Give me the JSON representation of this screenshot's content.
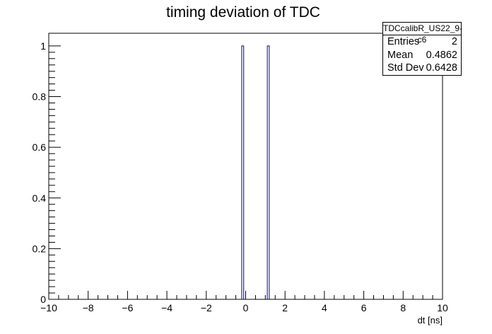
{
  "chart_data": {
    "type": "bar",
    "title": "timing deviation of TDC",
    "xlabel": "dt [ns]",
    "ylabel": "",
    "xlim": [
      -10,
      10
    ],
    "ylim": [
      0,
      1.05
    ],
    "bin_width": 0.1,
    "x_ticks": [
      -10,
      -8,
      -6,
      -4,
      -2,
      0,
      2,
      4,
      6,
      8,
      10
    ],
    "x_tick_labels": [
      "−10",
      "−8",
      "−6",
      "−4",
      "−2",
      "0",
      "2",
      "4",
      "6",
      "8",
      "10"
    ],
    "y_ticks": [
      0,
      0.2,
      0.4,
      0.6,
      0.8,
      1
    ],
    "y_tick_labels": [
      "0",
      "0.2",
      "0.4",
      "0.6",
      "0.8",
      "1"
    ],
    "bins": [
      {
        "x_low": -0.2,
        "x_high": -0.1,
        "count": 1
      },
      {
        "x_low": 1.1,
        "x_high": 1.2,
        "count": 1
      }
    ],
    "series_color": "#00008b",
    "grid": false,
    "legend": "none",
    "stats_box": {
      "name": "TDCcalibR_US22_9-c6",
      "rows": [
        {
          "label": "Entries",
          "value": "2"
        },
        {
          "label": "Mean",
          "value": "0.4862"
        },
        {
          "label": "Std Dev",
          "value": "0.6428"
        }
      ]
    }
  }
}
